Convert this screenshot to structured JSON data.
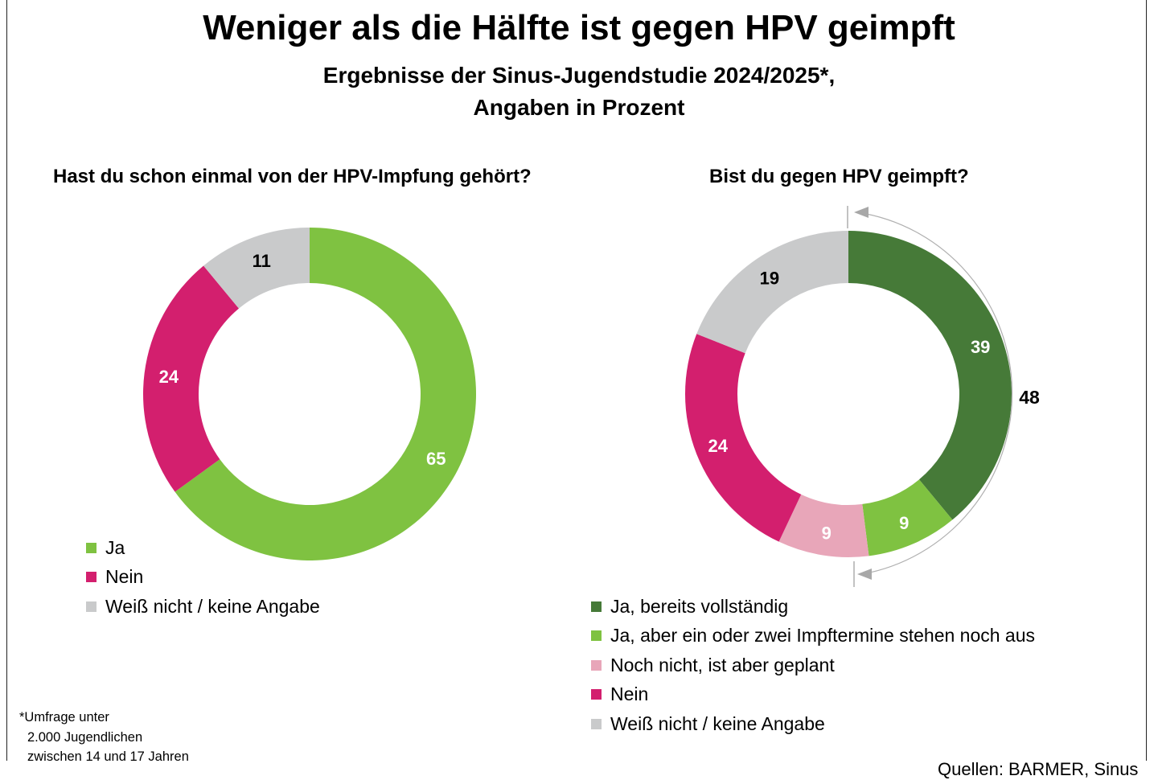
{
  "title": "Weniger als die Hälfte ist gegen HPV geimpft",
  "subtitle_lines": [
    "Ergebnisse der Sinus-Jugendstudie 2024/2025*,",
    "Angaben in Prozent"
  ],
  "chart_data": [
    {
      "type": "pie",
      "variant": "donut",
      "title": "Hast du schon einmal von der HPV-Impfung gehört?",
      "categories": [
        "Ja",
        "Nein",
        "Weiß nicht / keine Angabe"
      ],
      "values": [
        65,
        24,
        11
      ],
      "colors": [
        "#7fc241",
        "#d31f6e",
        "#c9cacb"
      ],
      "label_colors": [
        "#ffffff",
        "#ffffff",
        "#000000"
      ],
      "legend_position": "bottom-left"
    },
    {
      "type": "pie",
      "variant": "donut",
      "title": "Bist du gegen HPV geimpft?",
      "categories": [
        "Ja, bereits vollständig",
        "Ja, aber ein oder zwei Impftermine stehen noch aus",
        "Noch nicht, ist aber geplant",
        "Nein",
        "Weiß nicht / keine Angabe"
      ],
      "values": [
        39,
        9,
        9,
        24,
        19
      ],
      "colors": [
        "#467a38",
        "#7fc241",
        "#e8a6b9",
        "#d31f6e",
        "#c9cacb"
      ],
      "label_colors": [
        "#ffffff",
        "#ffffff",
        "#ffffff",
        "#ffffff",
        "#000000"
      ],
      "annotation": {
        "label": "48",
        "spans": [
          "Ja, bereits vollständig",
          "Ja, aber ein oder zwei Impftermine stehen noch aus"
        ]
      },
      "legend_position": "bottom"
    }
  ],
  "legend_left": [
    "Ja",
    "Nein",
    "Weiß nicht / keine Angabe"
  ],
  "legend_right": [
    "Ja, bereits vollständig",
    "Ja, aber ein oder zwei Impftermine stehen noch aus",
    "Noch nicht, ist aber geplant",
    "Nein",
    "Weiß nicht / keine Angabe"
  ],
  "footnote": [
    "*Umfrage unter",
    "2.000 Jugendlichen",
    "zwischen 14 und 17 Jahren"
  ],
  "source": "Quellen: BARMER, Sinus"
}
